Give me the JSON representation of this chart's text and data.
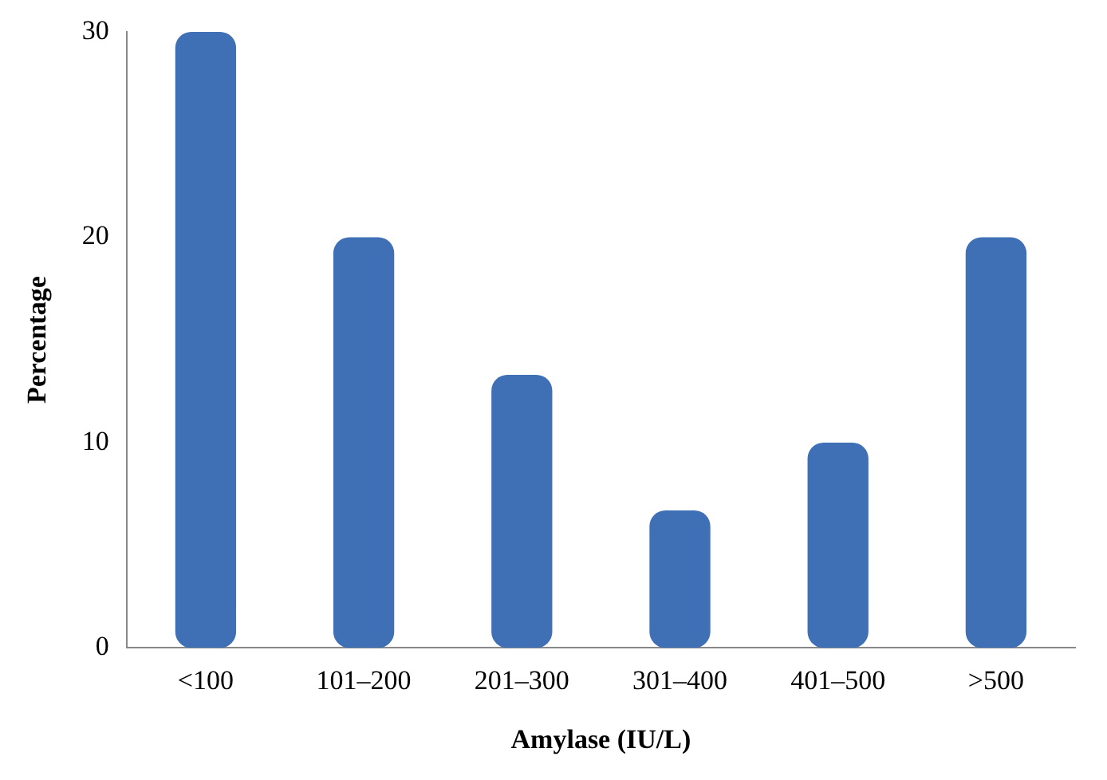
{
  "chart_data": {
    "type": "bar",
    "xlabel": "Amylase (IU/L)",
    "ylabel": "Percentage",
    "categories": [
      "<100",
      "101–200",
      "201–300",
      "301–400",
      "401–500",
      ">500"
    ],
    "values": [
      30,
      20,
      13.3,
      6.7,
      10,
      20
    ],
    "color": "#3f6fb5",
    "ylim": [
      0,
      30
    ],
    "yticks": [
      0,
      10,
      20,
      30
    ],
    "grid": false,
    "legend": false
  }
}
